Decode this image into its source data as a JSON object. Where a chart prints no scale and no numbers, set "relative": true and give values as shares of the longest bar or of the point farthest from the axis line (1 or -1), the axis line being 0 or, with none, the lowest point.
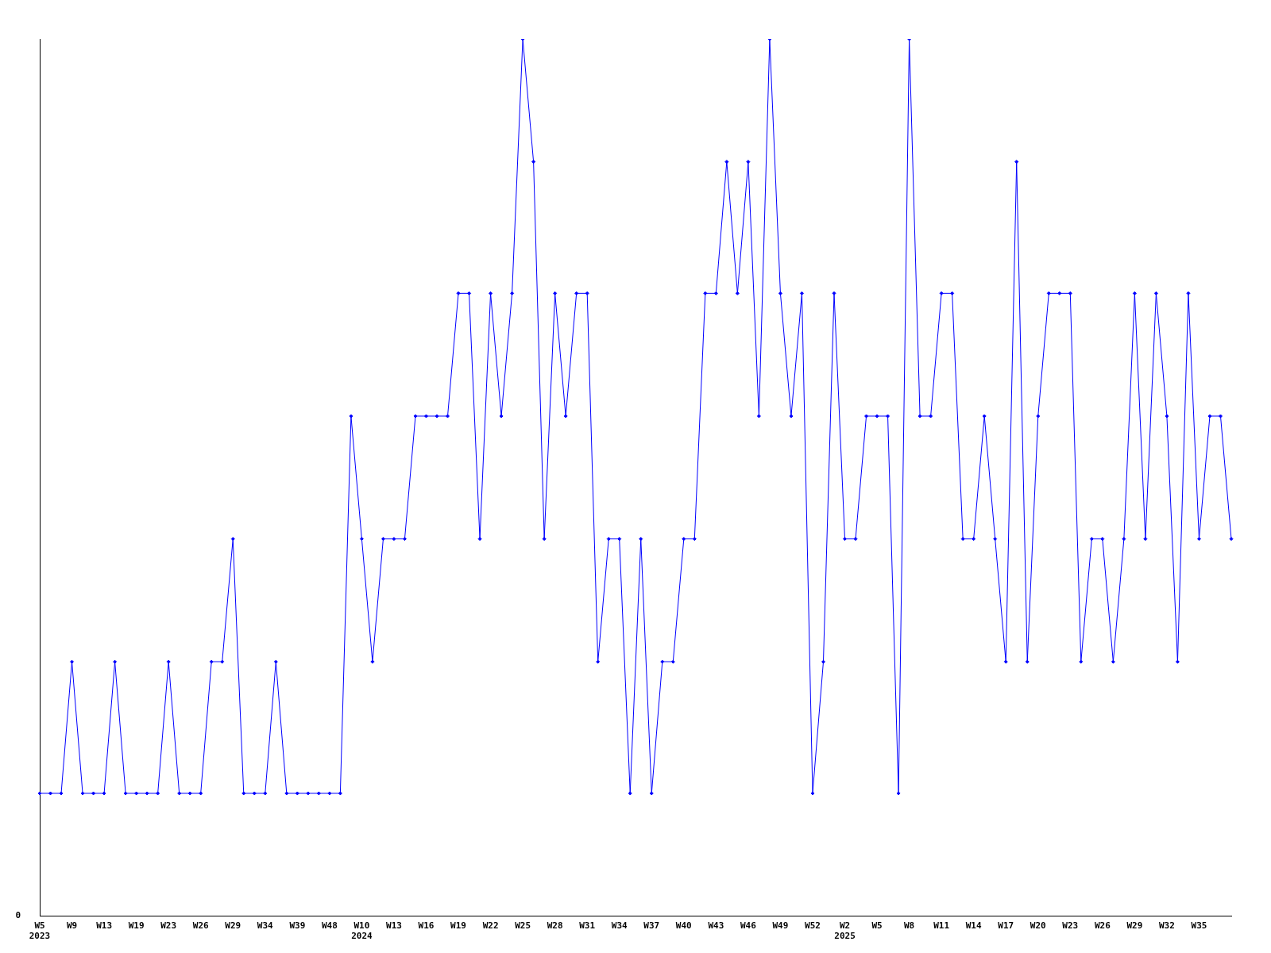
{
  "chart_data": {
    "type": "line",
    "relative": true,
    "grid": false,
    "legend": false,
    "marker": "diamond",
    "line_style": "solid",
    "annotations": [
      "0"
    ],
    "categories": [
      "W5\n2023",
      null,
      null,
      "W9",
      null,
      null,
      "W13",
      null,
      null,
      "W19",
      null,
      null,
      "W23",
      null,
      null,
      "W26",
      null,
      null,
      "W29",
      null,
      null,
      "W34",
      null,
      null,
      "W39",
      null,
      null,
      "W48",
      null,
      null,
      "W10\n2024",
      null,
      null,
      "W13",
      null,
      null,
      "W16",
      null,
      null,
      "W19",
      null,
      null,
      "W22",
      null,
      null,
      "W25",
      null,
      null,
      "W28",
      null,
      null,
      "W31",
      null,
      null,
      "W34",
      null,
      null,
      "W37",
      null,
      null,
      "W40",
      null,
      null,
      "W43",
      null,
      null,
      "W46",
      null,
      null,
      "W49",
      null,
      null,
      "W52",
      null,
      null,
      "W2\n2025",
      null,
      null,
      "W5",
      null,
      null,
      "W8",
      null,
      null,
      "W11",
      null,
      null,
      "W14",
      null,
      null,
      "W17",
      null,
      null,
      "W20",
      null,
      null,
      "W23",
      null,
      null,
      "W26",
      null,
      null,
      "W29",
      null,
      null,
      "W32",
      null,
      null,
      "W35",
      null,
      null,
      null
    ],
    "series": [
      {
        "color": "#0000ff",
        "values": [
          0.14,
          0.14,
          0.14,
          0.29,
          0.14,
          0.14,
          0.14,
          0.29,
          0.14,
          0.14,
          0.14,
          0.14,
          0.29,
          0.14,
          0.14,
          0.14,
          0.29,
          0.29,
          0.43,
          0.14,
          0.14,
          0.14,
          0.29,
          0.14,
          0.14,
          0.14,
          0.14,
          0.14,
          0.14,
          0.57,
          0.43,
          0.29,
          0.43,
          0.43,
          0.43,
          0.57,
          0.57,
          0.57,
          0.57,
          0.71,
          0.71,
          0.43,
          0.71,
          0.57,
          0.71,
          1,
          0.86,
          0.43,
          0.71,
          0.57,
          0.71,
          0.71,
          0.29,
          0.43,
          0.43,
          0.14,
          0.43,
          0.14,
          0.29,
          0.29,
          0.43,
          0.43,
          0.71,
          0.71,
          0.86,
          0.71,
          0.86,
          0.57,
          1,
          0.71,
          0.57,
          0.71,
          0.14,
          0.29,
          0.71,
          0.43,
          0.43,
          0.57,
          0.57,
          0.57,
          0.14,
          1,
          0.57,
          0.57,
          0.71,
          0.71,
          0.43,
          0.43,
          0.57,
          0.43,
          0.29,
          0.86,
          0.29,
          0.57,
          0.71,
          0.71,
          0.71,
          0.29,
          0.43,
          0.43,
          0.29,
          0.43,
          0.71,
          0.43,
          0.71,
          0.57,
          0.29,
          0.71,
          0.43,
          0.57,
          0.57,
          0.43
        ]
      }
    ]
  }
}
